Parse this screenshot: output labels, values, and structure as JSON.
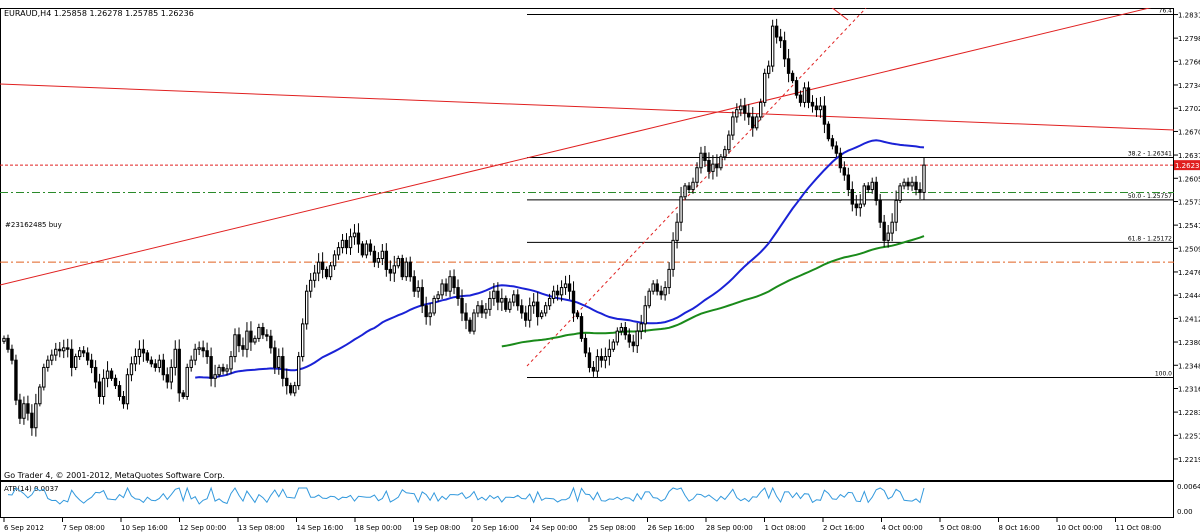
{
  "header": {
    "info": "EURAUD,H4  1.25858 1.26278 1.25785 1.26236",
    "order_label": "#23162485 buy",
    "watermark": "Go Trader 4, © 2001-2012, MetaQuotes Software Corp."
  },
  "indicator": {
    "label": "ATR(14) 0.0037",
    "axis_labels": [
      "0.0064",
      "0.00"
    ]
  },
  "fibonacci": [
    {
      "label": "76.4",
      "price": 1.2831
    },
    {
      "label": "38.2 - 1.26341",
      "price": 1.26341
    },
    {
      "label": "50.0 - 1.25757",
      "price": 1.25757
    },
    {
      "label": "61.8 - 1.25172",
      "price": 1.25172
    },
    {
      "label": "100.0",
      "price": 1.23312
    }
  ],
  "colors": {
    "bull": "#ffffff",
    "bear": "#000000",
    "ma_fast": "#1a22d6",
    "ma_slow": "#1a8a1a",
    "trend": "#e02020",
    "atr": "#3399dd",
    "current_price_tag": "#e02020",
    "order_line": "#2a8a2a"
  },
  "chart_data": {
    "type": "candlestick",
    "symbol": "EURAUD",
    "timeframe": "H4",
    "y_range": [
      1.219,
      1.284
    ],
    "current_price": "1.26236",
    "current_price_value": 1.26236,
    "order_price": 1.2586,
    "stop_price": 1.249,
    "y_ticks": [
      "1.28310",
      "1.27985",
      "1.27665",
      "1.27340",
      "1.27020",
      "1.26700",
      "1.26375",
      "1.26055",
      "1.25735",
      "1.25410",
      "1.25090",
      "1.24765",
      "1.24445",
      "1.24125",
      "1.23800",
      "1.23480",
      "1.23160",
      "1.22835",
      "1.22515",
      "1.22190"
    ],
    "x_ticks": [
      "6 Sep 2012",
      "7 Sep 08:00",
      "10 Sep 16:00",
      "12 Sep 00:00",
      "13 Sep 08:00",
      "14 Sep 16:00",
      "18 Sep 00:00",
      "19 Sep 08:00",
      "20 Sep 16:00",
      "24 Sep 00:00",
      "25 Sep 08:00",
      "26 Sep 16:00",
      "28 Sep 00:00",
      "1 Oct 08:00",
      "2 Oct 16:00",
      "4 Oct 00:00",
      "5 Oct 08:00",
      "8 Oct 16:00",
      "10 Oct 00:00",
      "11 Oct 08:00"
    ],
    "closes": [
      1.2385,
      1.237,
      1.2355,
      1.23,
      1.2275,
      1.2295,
      1.2282,
      1.2262,
      1.2295,
      1.2318,
      1.2345,
      1.2355,
      1.2362,
      1.237,
      1.2368,
      1.2372,
      1.237,
      1.2345,
      1.236,
      1.2368,
      1.2365,
      1.2355,
      1.2345,
      1.2325,
      1.2305,
      1.233,
      1.234,
      1.233,
      1.232,
      1.2305,
      1.2295,
      1.2335,
      1.235,
      1.236,
      1.237,
      1.2365,
      1.2355,
      1.235,
      1.2345,
      1.2355,
      1.2335,
      1.2325,
      1.2345,
      1.237,
      1.231,
      1.2305,
      1.2345,
      1.2355,
      1.237,
      1.2372,
      1.2368,
      1.236,
      1.233,
      1.2335,
      1.2345,
      1.234,
      1.2343,
      1.236,
      1.239,
      1.2375,
      1.237,
      1.2395,
      1.238,
      1.2385,
      1.24,
      1.239,
      1.2388,
      1.2372,
      1.2345,
      1.236,
      1.233,
      1.232,
      1.231,
      1.232,
      1.236,
      1.2405,
      1.245,
      1.2465,
      1.2475,
      1.249,
      1.248,
      1.247,
      1.2485,
      1.25,
      1.251,
      1.252,
      1.251,
      1.2525,
      1.253,
      1.2515,
      1.25,
      1.2515,
      1.2505,
      1.249,
      1.2495,
      1.2505,
      1.248,
      1.2475,
      1.2485,
      1.2495,
      1.247,
      1.249,
      1.247,
      1.245,
      1.2455,
      1.243,
      1.2415,
      1.242,
      1.244,
      1.2445,
      1.246,
      1.245,
      1.247,
      1.2455,
      1.244,
      1.242,
      1.241,
      1.2395,
      1.242,
      1.243,
      1.242,
      1.2425,
      1.244,
      1.245,
      1.2435,
      1.244,
      1.2425,
      1.2435,
      1.2445,
      1.243,
      1.242,
      1.241,
      1.243,
      1.2435,
      1.2415,
      1.242,
      1.243,
      1.244,
      1.245,
      1.2445,
      1.2455,
      1.246,
      1.245,
      1.242,
      1.2415,
      1.2385,
      1.2365,
      1.2345,
      1.234,
      1.236,
      1.2355,
      1.236,
      1.237,
      1.238,
      1.2395,
      1.24,
      1.239,
      1.238,
      1.2375,
      1.2395,
      1.2405,
      1.243,
      1.245,
      1.246,
      1.245,
      1.2445,
      1.2455,
      1.248,
      1.252,
      1.2545,
      1.258,
      1.2595,
      1.259,
      1.26,
      1.262,
      1.264,
      1.263,
      1.2615,
      1.2625,
      1.262,
      1.2635,
      1.2645,
      1.2665,
      1.269,
      1.27,
      1.2705,
      1.2695,
      1.269,
      1.2675,
      1.269,
      1.271,
      1.275,
      1.276,
      1.2815,
      1.28,
      1.2795,
      1.277,
      1.275,
      1.274,
      1.272,
      1.271,
      1.273,
      1.271,
      1.2705,
      1.27,
      1.2705,
      1.268,
      1.266,
      1.265,
      1.264,
      1.262,
      1.261,
      1.259,
      1.257,
      1.2565,
      1.257,
      1.2595,
      1.259,
      1.26,
      1.2575,
      1.2545,
      1.252,
      1.253,
      1.2545,
      1.2575,
      1.2595,
      1.26,
      1.2595,
      1.26,
      1.259,
      1.2586,
      1.26236
    ]
  }
}
